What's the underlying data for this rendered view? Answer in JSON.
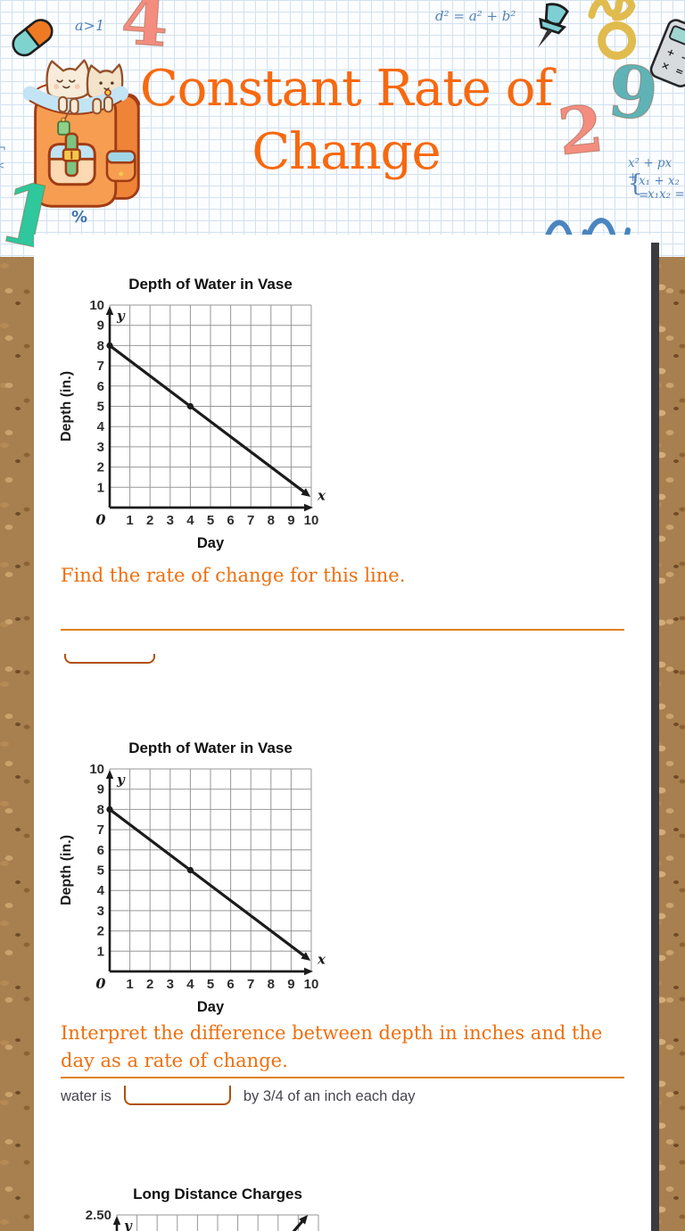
{
  "theme": {
    "accent_orange": "#f7690f",
    "question_orange": "#ee6f0e",
    "divider_orange": "#e2801f",
    "blank_underline": "#b0510b",
    "body_text": "#45454d",
    "doodle_blue": "#4f83b8",
    "cork_brown": "#a87f4f",
    "scrollbar_gray": "#3b3b40",
    "graph_ink": "#1b1b1b",
    "graph_grid": "#979797"
  },
  "header": {
    "title_line1": "Constant Rate of",
    "title_line2": "Change",
    "doodles": {
      "inequality": "a>1",
      "pythagorean_formula": "d² = a² + b²",
      "digit_four": "4",
      "digit_nine": "9",
      "digit_two": "2",
      "digit_one": "1",
      "percent_sign": "%",
      "quadratic_formula": "x² + px +",
      "brace": "{",
      "vieta_sum": "x₁ + x₂ =",
      "vieta_product": "x₁x₂ =",
      "calc_buttons": [
        "+",
        "−",
        "×",
        "="
      ],
      "edge_marks": [
        "¬",
        "<"
      ]
    }
  },
  "worksheet": {
    "question1_prompt": "Find the rate of change for this line.",
    "question2_prompt": "Interpret the difference between depth in inches and the day as a rate of change.",
    "fill_before": "water is",
    "fill_after": "by 3/4 of an inch each day"
  },
  "chart_data": [
    {
      "type": "line",
      "title": "Depth of Water in Vase",
      "xlabel": "Day",
      "ylabel": "Depth (in.)",
      "x_letter": "x",
      "y_letter": "y",
      "origin_label": "0",
      "xlim": [
        0,
        10
      ],
      "ylim": [
        0,
        10
      ],
      "x_ticks": [
        1,
        2,
        3,
        4,
        5,
        6,
        7,
        8,
        9,
        10
      ],
      "y_ticks": [
        1,
        2,
        3,
        4,
        5,
        6,
        7,
        8,
        9,
        10
      ],
      "line_points": [
        [
          0,
          8
        ],
        [
          4,
          5
        ],
        [
          9.75,
          0.69
        ]
      ],
      "marked_points": [
        [
          0,
          8
        ],
        [
          4,
          5
        ]
      ],
      "arrow_end": true,
      "grid": true,
      "legend": "none"
    },
    {
      "type": "line",
      "title": "Depth of Water in Vase",
      "xlabel": "Day",
      "ylabel": "Depth (in.)",
      "x_letter": "x",
      "y_letter": "y",
      "origin_label": "0",
      "xlim": [
        0,
        10
      ],
      "ylim": [
        0,
        10
      ],
      "x_ticks": [
        1,
        2,
        3,
        4,
        5,
        6,
        7,
        8,
        9,
        10
      ],
      "y_ticks": [
        1,
        2,
        3,
        4,
        5,
        6,
        7,
        8,
        9,
        10
      ],
      "line_points": [
        [
          0,
          8
        ],
        [
          4,
          5
        ],
        [
          9.75,
          0.69
        ]
      ],
      "marked_points": [
        [
          0,
          8
        ],
        [
          4,
          5
        ]
      ],
      "arrow_end": true,
      "grid": true,
      "legend": "none"
    },
    {
      "type": "line",
      "title": "Long Distance Charges",
      "y_letter": "y",
      "xlim": [
        0,
        10
      ],
      "ylim": [
        0,
        2.5
      ],
      "x_ticks": [],
      "y_ticks": [
        2.5
      ],
      "y_tick_labels": [
        "2.50"
      ],
      "line_points": [
        [
          7.4,
          1.9
        ],
        [
          9.3,
          2.45
        ]
      ],
      "marked_points": [],
      "arrow_end": true,
      "grid": true,
      "partial": true,
      "legend": "none"
    }
  ]
}
